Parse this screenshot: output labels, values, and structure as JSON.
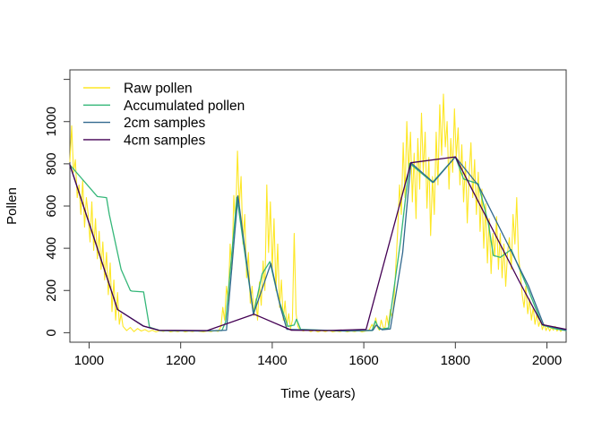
{
  "figure": {
    "background": "#ffffff",
    "box_color": "#3a3a3a",
    "tick_color": "#3a3a3a",
    "text_color": "#000000"
  },
  "chart_data": {
    "type": "line",
    "title": "",
    "xlabel": "Time (years)",
    "ylabel": "Pollen",
    "xlim": [
      958,
      2042
    ],
    "ylim": [
      -45,
      1245
    ],
    "grid": false,
    "xticks": [
      1000,
      1200,
      1400,
      1600,
      1800,
      2000
    ],
    "xtick_labels": [
      "1000",
      "1200",
      "1400",
      "1600",
      "1800",
      "2000"
    ],
    "yticks": [
      0,
      200,
      400,
      600,
      800,
      1000,
      1200
    ],
    "ytick_labels": [
      "0",
      "200",
      "400",
      "600",
      "800",
      "1000",
      ""
    ],
    "legend": {
      "position": "top-left",
      "entries": [
        "Raw pollen",
        "Accumulated pollen",
        "2cm samples",
        "4cm samples"
      ]
    },
    "series": [
      {
        "name": "Raw pollen",
        "color": "#FDE725",
        "lwd": 1.1,
        "x": [
          958,
          962,
          966,
          970,
          974,
          978,
          982,
          986,
          990,
          994,
          998,
          1002,
          1006,
          1010,
          1014,
          1018,
          1022,
          1026,
          1030,
          1034,
          1038,
          1042,
          1046,
          1050,
          1054,
          1058,
          1062,
          1066,
          1070,
          1074,
          1082,
          1090,
          1098,
          1106,
          1114,
          1122,
          1130,
          1138,
          1146,
          1154,
          1162,
          1170,
          1178,
          1186,
          1194,
          1202,
          1210,
          1218,
          1226,
          1234,
          1242,
          1250,
          1258,
          1266,
          1274,
          1282,
          1288,
          1292,
          1296,
          1300,
          1304,
          1308,
          1312,
          1316,
          1320,
          1324,
          1328,
          1332,
          1336,
          1340,
          1344,
          1348,
          1352,
          1356,
          1360,
          1364,
          1368,
          1372,
          1376,
          1380,
          1384,
          1388,
          1392,
          1396,
          1400,
          1404,
          1408,
          1412,
          1416,
          1420,
          1424,
          1428,
          1432,
          1436,
          1440,
          1444,
          1448,
          1452,
          1456,
          1460,
          1468,
          1476,
          1484,
          1492,
          1500,
          1508,
          1516,
          1524,
          1532,
          1540,
          1548,
          1556,
          1564,
          1572,
          1580,
          1588,
          1596,
          1604,
          1612,
          1618,
          1622,
          1626,
          1630,
          1634,
          1638,
          1642,
          1646,
          1650,
          1654,
          1658,
          1662,
          1666,
          1670,
          1674,
          1678,
          1682,
          1686,
          1690,
          1694,
          1698,
          1702,
          1706,
          1710,
          1714,
          1718,
          1722,
          1726,
          1730,
          1734,
          1738,
          1742,
          1746,
          1750,
          1754,
          1758,
          1762,
          1766,
          1770,
          1774,
          1778,
          1782,
          1786,
          1790,
          1794,
          1798,
          1802,
          1806,
          1810,
          1814,
          1818,
          1822,
          1826,
          1830,
          1834,
          1838,
          1842,
          1846,
          1850,
          1854,
          1858,
          1862,
          1866,
          1870,
          1874,
          1878,
          1882,
          1886,
          1890,
          1894,
          1898,
          1902,
          1906,
          1910,
          1914,
          1918,
          1922,
          1926,
          1930,
          1934,
          1938,
          1942,
          1946,
          1950,
          1954,
          1958,
          1962,
          1966,
          1970,
          1974,
          1978,
          1982,
          1986,
          1990,
          1994,
          1998,
          2002,
          2006,
          2010,
          2014,
          2018,
          2022,
          2026,
          2030,
          2034,
          2038,
          2042
        ],
        "y": [
          810,
          980,
          760,
          820,
          640,
          700,
          560,
          720,
          500,
          640,
          560,
          430,
          620,
          390,
          540,
          350,
          480,
          300,
          430,
          250,
          380,
          180,
          330,
          100,
          250,
          60,
          190,
          40,
          90,
          30,
          10,
          25,
          5,
          20,
          8,
          15,
          5,
          12,
          4,
          10,
          6,
          12,
          4,
          8,
          5,
          10,
          4,
          8,
          5,
          10,
          6,
          4,
          8,
          5,
          10,
          6,
          30,
          120,
          60,
          220,
          150,
          420,
          300,
          650,
          520,
          860,
          600,
          740,
          420,
          560,
          260,
          380,
          140,
          220,
          80,
          160,
          60,
          240,
          130,
          340,
          200,
          700,
          380,
          620,
          300,
          540,
          200,
          420,
          120,
          250,
          60,
          150,
          30,
          90,
          20,
          60,
          470,
          90,
          30,
          15,
          8,
          15,
          5,
          12,
          4,
          10,
          5,
          12,
          4,
          8,
          5,
          10,
          4,
          8,
          5,
          10,
          4,
          8,
          14,
          40,
          20,
          70,
          25,
          12,
          60,
          28,
          18,
          80,
          35,
          110,
          70,
          150,
          320,
          480,
          700,
          560,
          900,
          640,
          1000,
          760,
          950,
          620,
          850,
          540,
          920,
          680,
          1040,
          760,
          950,
          590,
          830,
          460,
          740,
          560,
          950,
          700,
          1080,
          840,
          1130,
          880,
          1000,
          680,
          920,
          760,
          1060,
          830,
          970,
          700,
          890,
          620,
          810,
          520,
          750,
          900,
          640,
          820,
          560,
          760,
          480,
          680,
          400,
          610,
          330,
          540,
          280,
          470,
          360,
          550,
          300,
          470,
          260,
          420,
          220,
          380,
          450,
          300,
          560,
          420,
          640,
          360,
          280,
          180,
          120,
          220,
          90,
          160,
          60,
          120,
          40,
          90,
          30,
          60,
          15,
          40,
          10,
          30,
          8,
          25,
          12,
          30,
          8,
          20,
          6,
          15,
          10,
          12
        ]
      },
      {
        "name": "Accumulated pollen",
        "color": "#35B779",
        "lwd": 1.3,
        "x": [
          958,
          1010,
          1018,
          1038,
          1044,
          1070,
          1090,
          1094,
          1119,
          1132,
          1155,
          1240,
          1290,
          1298,
          1323,
          1359,
          1378,
          1395,
          1414,
          1434,
          1448,
          1453,
          1462,
          1560,
          1618,
          1625,
          1634,
          1654,
          1680,
          1700,
          1750,
          1800,
          1818,
          1850,
          1872,
          1883,
          1898,
          1922,
          1958,
          1990,
          2020,
          2042
        ],
        "y": [
          795,
          665,
          645,
          640,
          560,
          300,
          200,
          197,
          193,
          26,
          10,
          8,
          10,
          50,
          642,
          88,
          278,
          337,
          158,
          30,
          36,
          64,
          16,
          8,
          10,
          55,
          16,
          22,
          430,
          803,
          712,
          833,
          728,
          705,
          520,
          366,
          357,
          394,
          210,
          36,
          18,
          10
        ]
      },
      {
        "name": "2cm samples",
        "color": "#31688E",
        "lwd": 1.3,
        "x": [
          958,
          1062,
          1120,
          1155,
          1250,
          1300,
          1325,
          1359,
          1397,
          1418,
          1432,
          1560,
          1620,
          1627,
          1640,
          1658,
          1685,
          1703,
          1752,
          1800,
          1850,
          1909,
          1960,
          1993,
          2042
        ],
        "y": [
          795,
          110,
          30,
          10,
          8,
          12,
          648,
          88,
          328,
          120,
          16,
          8,
          12,
          36,
          14,
          18,
          380,
          805,
          712,
          833,
          698,
          443,
          220,
          36,
          12
        ]
      },
      {
        "name": "4cm samples",
        "color": "#440154",
        "lwd": 1.3,
        "x": [
          958,
          1062,
          1118,
          1152,
          1258,
          1360,
          1442,
          1520,
          1605,
          1703,
          1800,
          1938,
          1990,
          2042
        ],
        "y": [
          795,
          110,
          32,
          12,
          10,
          88,
          12,
          10,
          16,
          805,
          833,
          250,
          38,
          16
        ]
      }
    ]
  }
}
